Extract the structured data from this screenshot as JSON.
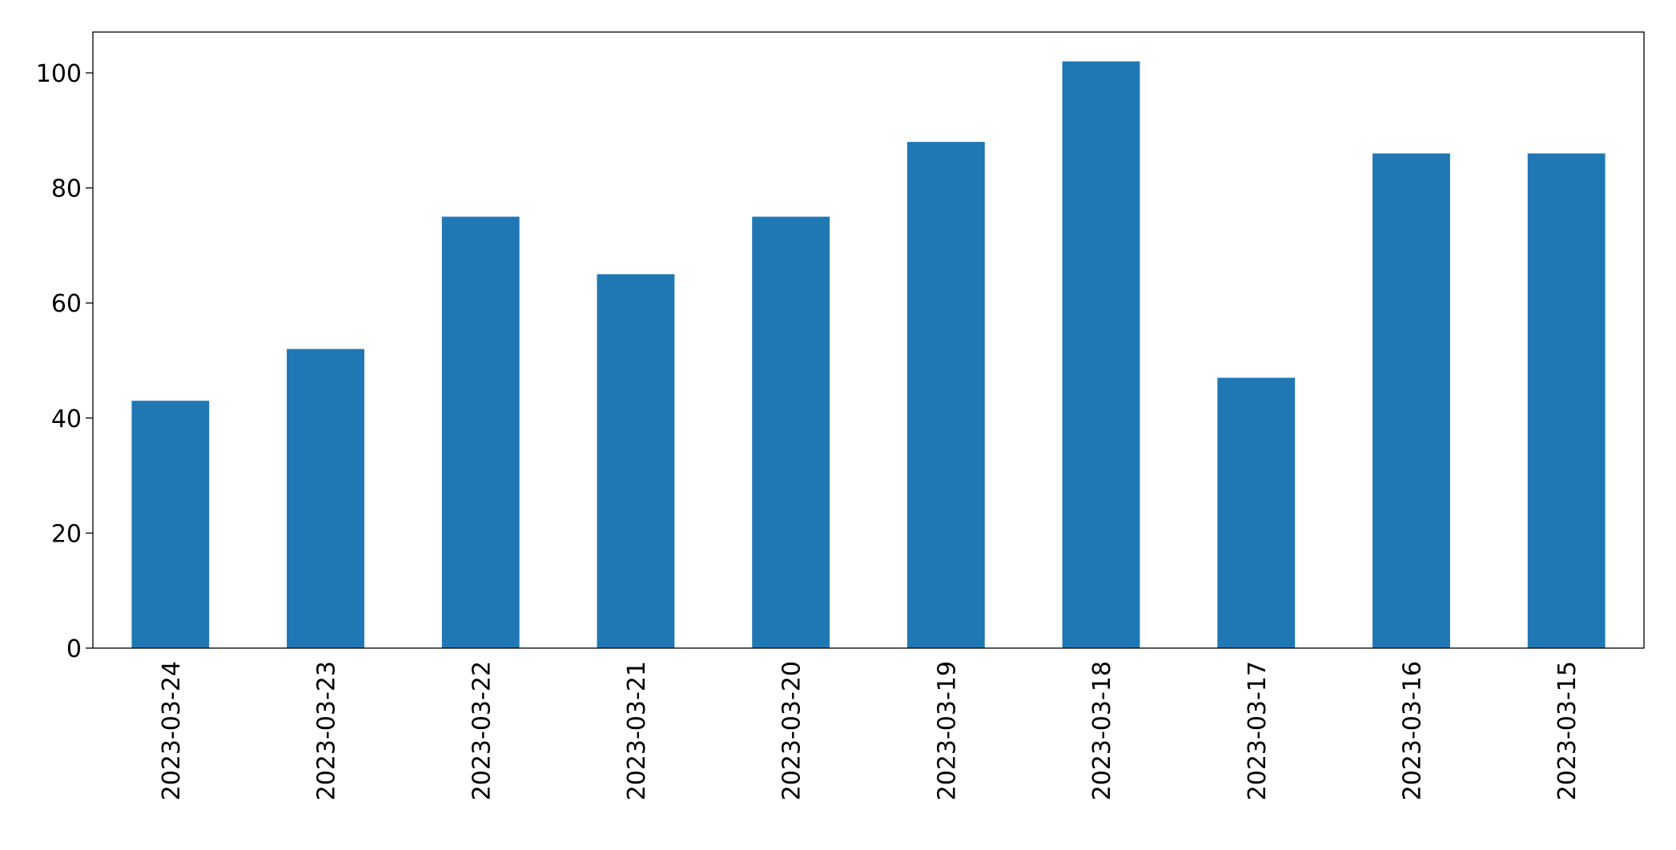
{
  "chart_data": {
    "type": "bar",
    "categories": [
      "2023-03-24",
      "2023-03-23",
      "2023-03-22",
      "2023-03-21",
      "2023-03-20",
      "2023-03-19",
      "2023-03-18",
      "2023-03-17",
      "2023-03-16",
      "2023-03-15"
    ],
    "values": [
      43,
      52,
      75,
      65,
      75,
      88,
      102,
      47,
      86,
      86
    ],
    "color": "#1f77b4",
    "ylim": [
      0,
      107.1
    ],
    "yticks": [
      0,
      20,
      40,
      60,
      80,
      100
    ],
    "grid": false
  }
}
